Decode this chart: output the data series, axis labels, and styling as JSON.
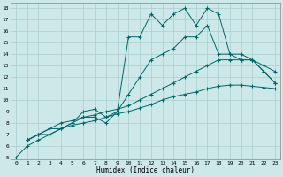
{
  "xlabel": "Humidex (Indice chaleur)",
  "xlim": [
    -0.5,
    23.5
  ],
  "ylim": [
    4.8,
    18.5
  ],
  "xticks": [
    0,
    1,
    2,
    3,
    4,
    5,
    6,
    7,
    8,
    9,
    10,
    11,
    12,
    13,
    14,
    15,
    16,
    17,
    18,
    19,
    20,
    21,
    22,
    23
  ],
  "yticks": [
    5,
    6,
    7,
    8,
    9,
    10,
    11,
    12,
    13,
    14,
    15,
    16,
    17,
    18
  ],
  "bg_color": "#cce8e8",
  "grid_color": "#aacece",
  "line_color": "#006666",
  "line1": {
    "x": [
      0,
      1,
      2,
      3,
      4,
      5,
      6,
      7,
      8,
      9,
      10,
      11,
      12,
      13,
      14,
      15,
      16,
      17,
      18,
      19,
      20,
      21,
      22,
      23
    ],
    "y": [
      5.0,
      6.0,
      6.5,
      7.0,
      7.5,
      7.8,
      8.0,
      8.2,
      8.5,
      8.8,
      9.0,
      9.3,
      9.6,
      10.0,
      10.3,
      10.5,
      10.7,
      11.0,
      11.2,
      11.3,
      11.3,
      11.2,
      11.1,
      11.0
    ]
  },
  "line2": {
    "x": [
      1,
      2,
      3,
      4,
      5,
      6,
      7,
      8,
      9,
      10,
      11,
      12,
      13,
      14,
      15,
      16,
      17,
      18,
      19,
      20,
      21,
      22,
      23
    ],
    "y": [
      6.5,
      7.0,
      7.5,
      8.0,
      8.2,
      8.5,
      8.7,
      9.0,
      9.2,
      9.5,
      10.0,
      10.5,
      11.0,
      11.5,
      12.0,
      12.5,
      13.0,
      13.5,
      13.5,
      13.5,
      13.5,
      12.5,
      11.5
    ]
  },
  "line3": {
    "x": [
      1,
      2,
      3,
      4,
      5,
      6,
      7,
      8,
      9,
      10,
      11,
      12,
      13,
      14,
      15,
      16,
      17,
      18,
      19,
      20,
      21,
      22,
      23
    ],
    "y": [
      6.5,
      7.0,
      7.0,
      7.5,
      8.0,
      8.5,
      8.5,
      8.0,
      9.0,
      10.5,
      12.0,
      13.5,
      14.0,
      14.5,
      15.5,
      15.5,
      16.5,
      14.0,
      14.0,
      14.0,
      13.5,
      13.0,
      12.5
    ]
  },
  "line4": {
    "x": [
      1,
      2,
      3,
      4,
      5,
      6,
      7,
      8,
      9,
      10,
      11,
      12,
      13,
      14,
      15,
      16,
      17,
      18,
      19,
      20,
      21,
      22,
      23
    ],
    "y": [
      6.5,
      7.0,
      7.5,
      7.5,
      8.0,
      9.0,
      9.2,
      8.5,
      9.0,
      15.5,
      15.5,
      17.5,
      16.5,
      17.5,
      18.0,
      16.5,
      18.0,
      17.5,
      14.0,
      13.5,
      13.5,
      12.5,
      11.5
    ]
  }
}
